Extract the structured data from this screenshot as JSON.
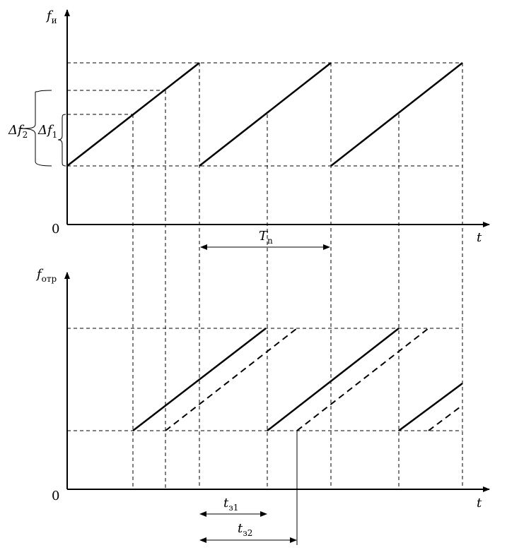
{
  "top_axis": {
    "symbol": "f",
    "subscript": "и"
  },
  "top_origin": "0",
  "top_time": "t",
  "delta_f2": {
    "symbol": "Δf",
    "subscript": "2"
  },
  "delta_f1": {
    "symbol": "Δf",
    "subscript": "1"
  },
  "period": {
    "symbol": "T",
    "subscript": "n"
  },
  "bottom_axis": {
    "symbol": "f",
    "subscript": "отр"
  },
  "bottom_origin": "0",
  "bottom_time": "t",
  "delay1": {
    "symbol": "t",
    "subscript": "з1"
  },
  "delay2": {
    "symbol": "t",
    "subscript": "з2"
  }
}
